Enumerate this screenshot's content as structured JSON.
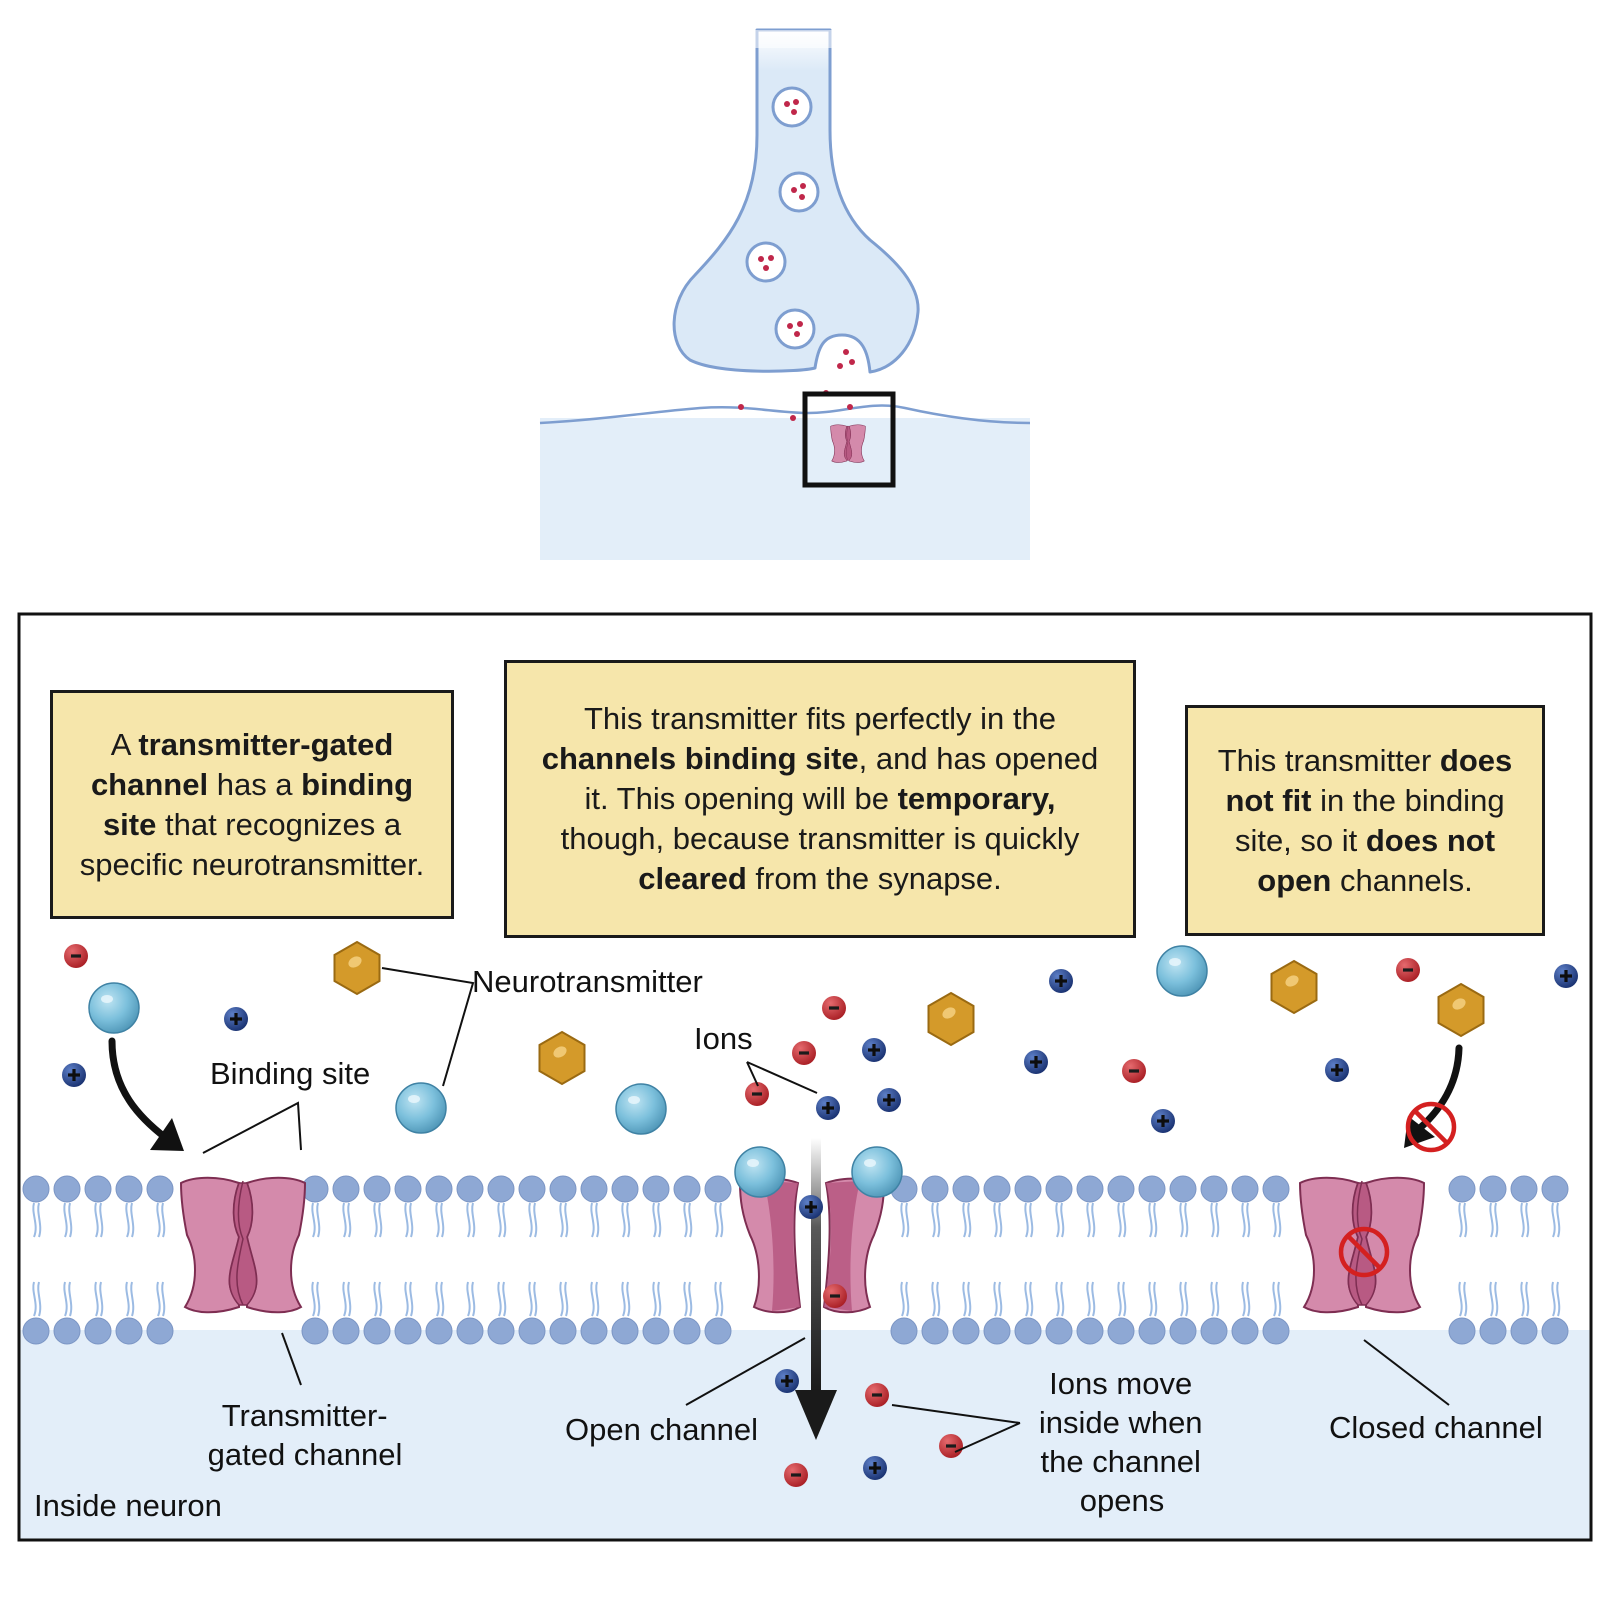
{
  "labels": {
    "neurotransmitter": "Neurotransmitter",
    "binding_site": "Binding site",
    "ions": "Ions",
    "transmitter_gated_1": "Transmitter-",
    "transmitter_gated_2": "gated channel",
    "open_channel": "Open channel",
    "ions_move_1": "Ions move",
    "ions_move_2": "inside when",
    "ions_move_3": "the channel",
    "ions_move_4": "opens",
    "closed_channel": "Closed channel",
    "inside_neuron": "Inside neuron"
  },
  "box_left": {
    "t1": "A ",
    "b1": "transmitter-gated channel",
    "t2": " has a ",
    "b2": "binding site",
    "t3": " that recognizes a specific neurotransmitter."
  },
  "box_middle": {
    "t1": "This transmitter fits perfectly in the ",
    "b1": "channels binding site",
    "t2": ", and has opened it.  This opening will be ",
    "b2": "temporary,",
    "t3": " though, because transmitter is quickly ",
    "b3": "cleared",
    "t4": " from the synapse."
  },
  "box_right": {
    "t1": "This transmitter ",
    "b1": "does not fit",
    "t2": " in the binding site, so it ",
    "b2": "does not open",
    "t3": " channels."
  },
  "colors": {
    "membrane_head": "#8ea8d4",
    "channel": "#d48aab",
    "channel_dark": "#b85a83",
    "neurotransmitter_gold": "#d49a2a",
    "transmitter_blue": "#7cc0dc",
    "ion_negative": "#c0272d",
    "ion_positive": "#1f3f8c",
    "note_bg": "#f6e6ab",
    "prohibit": "#d42020",
    "cytoplasm": "#e3eef9"
  },
  "icons": [
    "negative-ion-icon",
    "positive-ion-icon",
    "neurotransmitter-hexagon-icon",
    "transmitter-sphere-icon",
    "prohibited-icon"
  ]
}
